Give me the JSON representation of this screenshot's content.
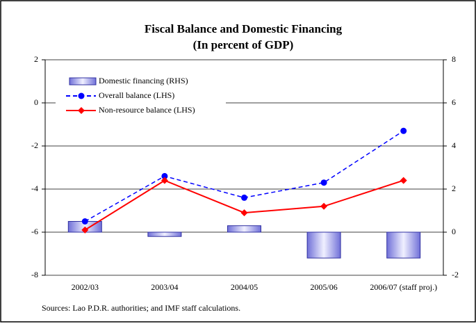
{
  "chart_data": {
    "type": "combo",
    "title": "Fiscal Balance and Domestic Financing",
    "subtitle": "(In percent of GDP)",
    "categories": [
      "2002/03",
      "2003/04",
      "2004/05",
      "2005/06",
      "2006/07 (staff proj.)"
    ],
    "series": [
      {
        "name": "Domestic financing (RHS)",
        "type": "bar",
        "axis": "y2",
        "color": "#c8c8f0",
        "values": [
          0.5,
          -0.2,
          0.3,
          -1.2,
          -1.2
        ]
      },
      {
        "name": "Overall balance (LHS)",
        "type": "line",
        "marker": "circle",
        "dashed": true,
        "color": "#0000ff",
        "values": [
          -5.5,
          -3.4,
          -4.4,
          -3.7,
          -1.3
        ]
      },
      {
        "name": "Non-resource balance (LHS)",
        "type": "line",
        "marker": "diamond",
        "dashed": false,
        "color": "#ff0000",
        "values": [
          -5.9,
          -3.6,
          -5.1,
          -4.8,
          -3.6
        ]
      }
    ],
    "ylim": [
      -8,
      2
    ],
    "yticks": [
      -8,
      -6,
      -4,
      -2,
      0,
      2
    ],
    "y2lim": [
      -2,
      8
    ],
    "y2ticks": [
      -2,
      0,
      2,
      4,
      6,
      8
    ],
    "grid": true,
    "legend": "upper left",
    "source": "Sources: Lao P.D.R. authorities; and IMF staff calculations."
  }
}
